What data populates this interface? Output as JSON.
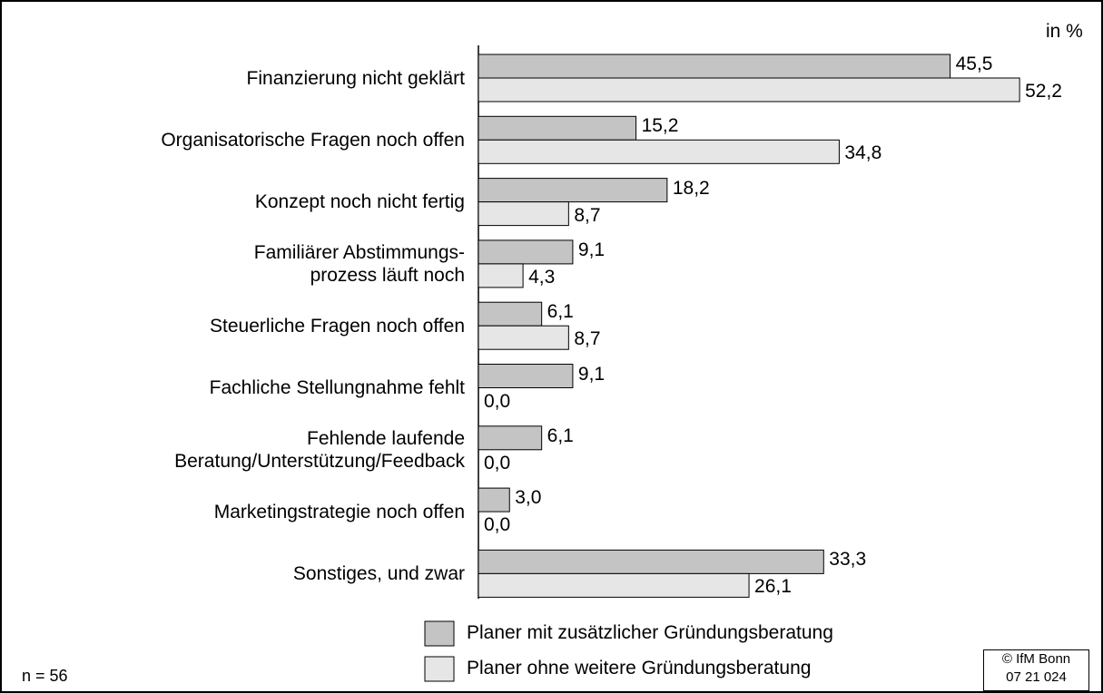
{
  "chart_data": {
    "type": "bar",
    "orientation": "horizontal",
    "unit_label": "in %",
    "categories": [
      "Finanzierung nicht geklärt",
      "Organisatorische Fragen noch offen",
      "Konzept noch nicht fertig",
      "Familiärer Abstimmungs-\nprozess läuft noch",
      "Steuerliche Fragen noch offen",
      "Fachliche Stellungnahme fehlt",
      "Fehlende laufende\nBeratung/Unterstützung/Feedback",
      "Marketingstrategie noch offen",
      "Sonstiges, und zwar"
    ],
    "series": [
      {
        "name": "Planer mit zusätzlicher Gründungsberatung",
        "color": "#c4c4c4",
        "values": [
          45.5,
          15.2,
          18.2,
          9.1,
          6.1,
          9.1,
          6.1,
          3.0,
          33.3
        ],
        "value_labels": [
          "45,5",
          "15,2",
          "18,2",
          "9,1",
          "6,1",
          "9,1",
          "6,1",
          "3,0",
          "33,3"
        ]
      },
      {
        "name": "Planer ohne weitere Gründungsberatung",
        "color": "#e6e6e6",
        "values": [
          52.2,
          34.8,
          8.7,
          4.3,
          8.7,
          0.0,
          0.0,
          0.0,
          26.1
        ],
        "value_labels": [
          "52,2",
          "34,8",
          "8,7",
          "4,3",
          "8,7",
          "0,0",
          "0,0",
          "0,0",
          "26,1"
        ]
      }
    ],
    "sample_note": "n = 56",
    "copyright": "© IfM Bonn\n07  21  024"
  }
}
